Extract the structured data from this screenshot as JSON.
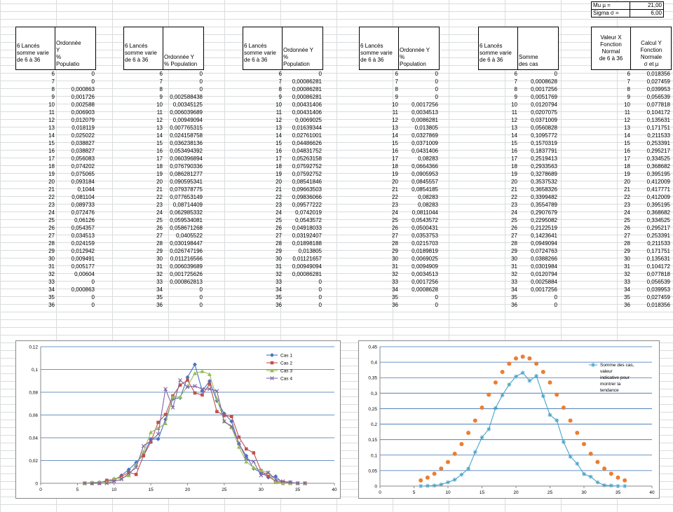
{
  "params": {
    "mu_label": "Mu µ =",
    "mu_value": "21,00",
    "sigma_label": "Sigma σ =",
    "sigma_value": "6,00"
  },
  "headers": [
    {
      "a": "6 Lancés\nsomme varie\nde 6 à 36",
      "b": "Ordonnée\nY\n%\nPopulatio"
    },
    {
      "a": "6 Lancés\nsomme varie\nde 6 à 36",
      "b": "Ordonnée Y\n% Population"
    },
    {
      "a": "6 Lancés\nsomme varie\nde 6 à 36",
      "b": "Ordonnée Y\n%\nPopulation"
    },
    {
      "a": "6 Lancés\nsomme varie\nde 6 à 36",
      "b": "Ordonnée Y\n%\nPopulation"
    },
    {
      "a": "6 Lancés\nsomme varie\nde 6 à 36",
      "b": "Somme\ndes cas"
    },
    {
      "a": "Valeur X\nFonction\nNormal\nde 6 à 36",
      "b": "Calcul Y\nFonction\nNormale\nσ et µ"
    }
  ],
  "x": [
    "6",
    "7",
    "8",
    "9",
    "10",
    "11",
    "12",
    "13",
    "14",
    "15",
    "16",
    "17",
    "18",
    "19",
    "20",
    "21",
    "22",
    "23",
    "24",
    "25",
    "26",
    "27",
    "28",
    "29",
    "30",
    "31",
    "32",
    "33",
    "34",
    "35",
    "36"
  ],
  "cols": [
    [
      "0",
      "0",
      "0,000863",
      "0,001726",
      "0,002588",
      "0,006903",
      "0,012079",
      "0,018119",
      "0,025022",
      "0,038827",
      "0,038827",
      "0,056083",
      "0,074202",
      "0,075065",
      "0,093184",
      "0,1044",
      "0,081104",
      "0,089733",
      "0,072476",
      "0,06126",
      "0,054357",
      "0,034513",
      "0,024159",
      "0,012942",
      "0,009491",
      "0,005177",
      "0,00604",
      "0",
      "0,000863",
      "0",
      "0"
    ],
    [
      "0",
      "0",
      "0",
      "0,002588438",
      "0,00345125",
      "0,006039689",
      "0,00949094",
      "0,007765315",
      "0,024158758",
      "0,036238136",
      "0,053494392",
      "0,060396894",
      "0,076790336",
      "0,086281277",
      "0,090595341",
      "0,079378775",
      "0,077653149",
      "0,08714409",
      "0,062985332",
      "0,059534081",
      "0,058671268",
      "0,0405522",
      "0,030198447",
      "0,026747196",
      "0,011216566",
      "0,006039689",
      "0,001725626",
      "0,000862813",
      "0",
      "0",
      "0"
    ],
    [
      "0",
      "0,00086281",
      "0,00086281",
      "0,00086281",
      "0,00431406",
      "0,00431406",
      "0,0069025",
      "0,01639344",
      "0,02761001",
      "0,04486626",
      "0,04831752",
      "0,05263158",
      "0,07592752",
      "0,07592752",
      "0,08541846",
      "0,09663503",
      "0,09836066",
      "0,09577222",
      "0,0742019",
      "0,0543572",
      "0,04918033",
      "0,03192407",
      "0,01898188",
      "0,013805",
      "0,01121657",
      "0,00949094",
      "0,00086281",
      "0",
      "0",
      "0",
      "0"
    ],
    [
      "0",
      "0",
      "0",
      "0",
      "0,0017256",
      "0,0034513",
      "0,0086281",
      "0,013805",
      "0,0327869",
      "0,0371009",
      "0,0431406",
      "0,08283",
      "0,0664366",
      "0,0905953",
      "0,0845557",
      "0,0854185",
      "0,08283",
      "0,08283",
      "0,0811044",
      "0,0543572",
      "0,0500431",
      "0,0353753",
      "0,0215703",
      "0,0189819",
      "0,0069025",
      "0,0094909",
      "0,0034513",
      "0,0017256",
      "0,0008628",
      "0",
      "0"
    ],
    [
      "0",
      "0,0008628",
      "0,0017256",
      "0,0051769",
      "0,0120794",
      "0,0207075",
      "0,0371009",
      "0,0560828",
      "0,1095772",
      "0,1570319",
      "0,1837791",
      "0,2519413",
      "0,2933563",
      "0,3278689",
      "0,3537532",
      "0,3658326",
      "0,3399482",
      "0,3554789",
      "0,2907679",
      "0,2295082",
      "0,2122519",
      "0,1423641",
      "0,0949094",
      "0,0724763",
      "0,0388266",
      "0,0301984",
      "0,0120794",
      "0,0025884",
      "0,0017256",
      "0",
      "0"
    ],
    [
      "0,018356",
      "0,027459",
      "0,039953",
      "0,056539",
      "0,077818",
      "0,104172",
      "0,135631",
      "0,171751",
      "0,211533",
      "0,253391",
      "0,295217",
      "0,334525",
      "0,368682",
      "0,395195",
      "0,412009",
      "0,417771",
      "0,412009",
      "0,395195",
      "0,368682",
      "0,334525",
      "0,295217",
      "0,253391",
      "0,211533",
      "0,171751",
      "0,135631",
      "0,104172",
      "0,077818",
      "0,056539",
      "0,039953",
      "0,027459",
      "0,018356"
    ]
  ],
  "chart1": {
    "type": "line",
    "ylim": [
      0,
      0.12
    ],
    "xlim": [
      0,
      40
    ],
    "yticks": [
      "0",
      "0,02",
      "0,04",
      "0,06",
      "0,08",
      "0,1",
      "0,12"
    ],
    "xticks": [
      "0",
      "5",
      "10",
      "15",
      "20",
      "25",
      "30",
      "35",
      "40"
    ],
    "series": [
      {
        "name": "Cas 1",
        "color": "#4572c4"
      },
      {
        "name": "Cas 2",
        "color": "#c0504d"
      },
      {
        "name": "Cas 3",
        "color": "#9bbb59"
      },
      {
        "name": "Cas 4",
        "color": "#8064a2"
      }
    ]
  },
  "chart2": {
    "type": "line",
    "ylim": [
      0,
      0.45
    ],
    "xlim": [
      0,
      40
    ],
    "yticks": [
      "0",
      "0,05",
      "0,1",
      "0,15",
      "0,2",
      "0,25",
      "0,3",
      "0,35",
      "0,4",
      "0,45"
    ],
    "xticks": [
      "0",
      "5",
      "10",
      "15",
      "20",
      "25",
      "30",
      "35",
      "40"
    ],
    "legend": "Somme des cas, valeur indicative pour montrer la tendance",
    "colors": {
      "sum": "#4aa3c8",
      "normal": "#ed7d31"
    }
  }
}
